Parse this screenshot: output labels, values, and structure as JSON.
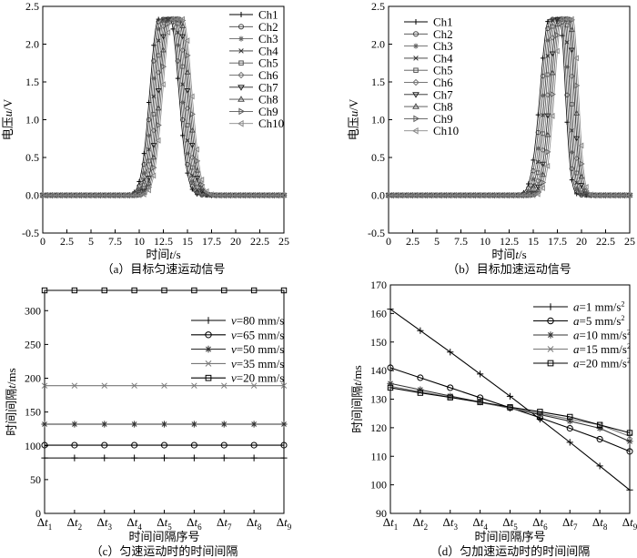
{
  "chart_data": [
    {
      "id": "a",
      "type": "line",
      "caption": "（a）目标匀速运动信号",
      "xlabel": "时间t/s",
      "ylabel": "电压u/V",
      "xlim": [
        0,
        25
      ],
      "ylim": [
        -0.5,
        2.5
      ],
      "xticks": [
        "0",
        "2.5",
        "5",
        "7.5",
        "10",
        "12.5",
        "15",
        "17.5",
        "20",
        "22.5",
        "25"
      ],
      "yticks": [
        "-0.5",
        "0.0",
        "0.5",
        "1.0",
        "1.5",
        "2.0",
        "2.5"
      ],
      "legend_position": "top-right",
      "series": [
        {
          "name": "Ch1",
          "peak_center": 12.6,
          "rise_width": 1.25,
          "fall_width": 1.25,
          "amplitude": 2.33,
          "flat_half_width": 0.6
        },
        {
          "name": "Ch2",
          "peak_center": 12.75,
          "rise_width": 1.25,
          "fall_width": 1.25,
          "amplitude": 2.33,
          "flat_half_width": 0.6
        },
        {
          "name": "Ch3",
          "peak_center": 12.9,
          "rise_width": 1.25,
          "fall_width": 1.25,
          "amplitude": 2.33,
          "flat_half_width": 0.6
        },
        {
          "name": "Ch4",
          "peak_center": 13.05,
          "rise_width": 1.25,
          "fall_width": 1.25,
          "amplitude": 2.33,
          "flat_half_width": 0.6
        },
        {
          "name": "Ch5",
          "peak_center": 13.2,
          "rise_width": 1.25,
          "fall_width": 1.25,
          "amplitude": 2.33,
          "flat_half_width": 0.6
        },
        {
          "name": "Ch6",
          "peak_center": 13.35,
          "rise_width": 1.25,
          "fall_width": 1.25,
          "amplitude": 2.33,
          "flat_half_width": 0.6
        },
        {
          "name": "Ch7",
          "peak_center": 13.5,
          "rise_width": 1.25,
          "fall_width": 1.25,
          "amplitude": 2.33,
          "flat_half_width": 0.6
        },
        {
          "name": "Ch8",
          "peak_center": 13.65,
          "rise_width": 1.25,
          "fall_width": 1.25,
          "amplitude": 2.33,
          "flat_half_width": 0.6
        },
        {
          "name": "Ch9",
          "peak_center": 13.8,
          "rise_width": 1.25,
          "fall_width": 1.25,
          "amplitude": 2.33,
          "flat_half_width": 0.6
        },
        {
          "name": "Ch10",
          "peak_center": 13.95,
          "rise_width": 1.25,
          "fall_width": 1.25,
          "amplitude": 2.33,
          "flat_half_width": 0.6
        }
      ]
    },
    {
      "id": "b",
      "type": "line",
      "caption": "（b）目标加速运动信号",
      "xlabel": "时间t/s",
      "ylabel": "电压u/V",
      "xlim": [
        0,
        25
      ],
      "ylim": [
        -0.5,
        2.5
      ],
      "xticks": [
        "0",
        "2.5",
        "5",
        "7.5",
        "10",
        "12.5",
        "15",
        "17.5",
        "20",
        "22.5",
        "25"
      ],
      "yticks": [
        "-0.5",
        "0.0",
        "0.5",
        "1.0",
        "1.5",
        "2.0",
        "2.5"
      ],
      "legend_position": "top-left",
      "series": [
        {
          "name": "Ch1",
          "peak_center": 17.2,
          "rise_width": 1.3,
          "fall_width": 0.8,
          "amplitude": 2.33,
          "flat_half_width": 0.55
        },
        {
          "name": "Ch2",
          "peak_center": 17.35,
          "rise_width": 1.28,
          "fall_width": 0.8,
          "amplitude": 2.33,
          "flat_half_width": 0.55
        },
        {
          "name": "Ch3",
          "peak_center": 17.5,
          "rise_width": 1.26,
          "fall_width": 0.8,
          "amplitude": 2.33,
          "flat_half_width": 0.55
        },
        {
          "name": "Ch4",
          "peak_center": 17.65,
          "rise_width": 1.24,
          "fall_width": 0.8,
          "amplitude": 2.33,
          "flat_half_width": 0.55
        },
        {
          "name": "Ch5",
          "peak_center": 17.8,
          "rise_width": 1.22,
          "fall_width": 0.8,
          "amplitude": 2.33,
          "flat_half_width": 0.55
        },
        {
          "name": "Ch6",
          "peak_center": 17.95,
          "rise_width": 1.2,
          "fall_width": 0.8,
          "amplitude": 2.33,
          "flat_half_width": 0.55
        },
        {
          "name": "Ch7",
          "peak_center": 18.1,
          "rise_width": 1.18,
          "fall_width": 0.8,
          "amplitude": 2.33,
          "flat_half_width": 0.55
        },
        {
          "name": "Ch8",
          "peak_center": 18.25,
          "rise_width": 1.16,
          "fall_width": 0.8,
          "amplitude": 2.33,
          "flat_half_width": 0.55
        },
        {
          "name": "Ch9",
          "peak_center": 18.4,
          "rise_width": 1.14,
          "fall_width": 0.8,
          "amplitude": 2.33,
          "flat_half_width": 0.55
        },
        {
          "name": "Ch10",
          "peak_center": 18.55,
          "rise_width": 1.12,
          "fall_width": 0.8,
          "amplitude": 2.33,
          "flat_half_width": 0.55
        }
      ]
    },
    {
      "id": "c",
      "type": "line",
      "caption": "（c）匀速运动时的时间间隔",
      "xlabel": "时间间隔序号",
      "ylabel": "时间间隔t/ms",
      "ylim": [
        0,
        330
      ],
      "yticks": [
        "0",
        "50",
        "100",
        "150",
        "200",
        "250",
        "300"
      ],
      "categories": [
        "Δt1",
        "Δt2",
        "Δt3",
        "Δt4",
        "Δt5",
        "Δt6",
        "Δt7",
        "Δt8",
        "Δt9"
      ],
      "legend_position": "middle-right",
      "series": [
        {
          "name": "v=80 mm/s",
          "values": [
            82,
            82,
            82,
            82,
            82,
            82,
            82,
            82,
            82
          ]
        },
        {
          "name": "v=65 mm/s",
          "values": [
            101,
            101,
            101,
            101,
            101,
            101,
            101,
            101,
            101
          ]
        },
        {
          "name": "v=50 mm/s",
          "values": [
            132,
            132,
            132,
            132,
            132,
            132,
            132,
            132,
            132
          ]
        },
        {
          "name": "v=35 mm/s",
          "values": [
            189,
            189,
            189,
            189,
            189,
            189,
            189,
            189,
            189
          ]
        },
        {
          "name": "v=20 mm/s",
          "values": [
            330,
            330,
            330,
            330,
            330,
            330,
            330,
            330,
            330
          ]
        }
      ]
    },
    {
      "id": "d",
      "type": "line",
      "caption": "（d）匀加速运动时的时间间隔",
      "xlabel": "时间间隔序号",
      "ylabel": "时间间隔t/ms",
      "ylim": [
        90,
        170
      ],
      "yticks": [
        "90",
        "100",
        "110",
        "120",
        "130",
        "140",
        "150",
        "160",
        "170"
      ],
      "categories": [
        "Δt1",
        "Δt2",
        "Δt3",
        "Δt4",
        "Δt5",
        "Δt6",
        "Δt7",
        "Δt8",
        "Δt9"
      ],
      "legend_position": "top-right",
      "series": [
        {
          "name": "a=1 mm/s2",
          "values": [
            161.5,
            154,
            146.5,
            138.8,
            131,
            123,
            114.9,
            106.6,
            98.2
          ]
        },
        {
          "name": "a=5 mm/s2",
          "values": [
            141,
            137.5,
            134,
            130.5,
            127,
            123.5,
            119.8,
            116,
            111.7
          ]
        },
        {
          "name": "a=10 mm/s2",
          "values": [
            135.5,
            133.3,
            131.1,
            129,
            126.8,
            124.6,
            122.3,
            119.8,
            115.2
          ]
        },
        {
          "name": "a=15 mm/s2",
          "values": [
            134.5,
            132.6,
            130.7,
            128.8,
            126.9,
            125,
            123,
            121,
            117
          ]
        },
        {
          "name": "a=20 mm/s2",
          "values": [
            134,
            132.2,
            130.6,
            129,
            127.2,
            125.6,
            123.8,
            121,
            118.2
          ]
        }
      ]
    }
  ]
}
